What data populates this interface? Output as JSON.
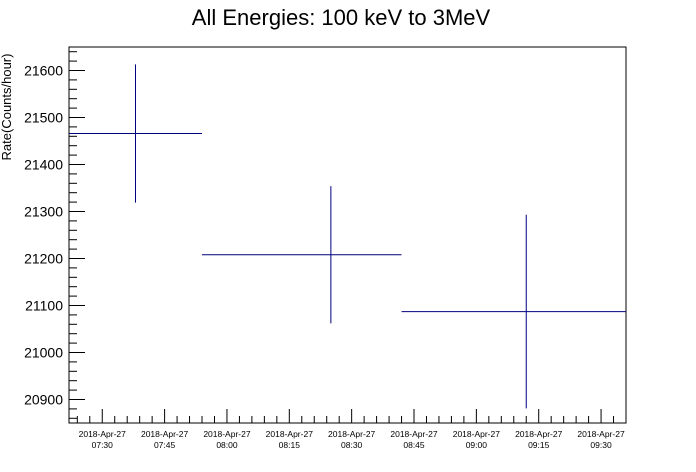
{
  "chart_data": {
    "type": "scatter",
    "title": "All Energies:  100 keV to 3MeV",
    "xlabel": "",
    "ylabel": "Rate(Counts/hour)",
    "x_tick_labels": [
      {
        "date": "2018-Apr-27",
        "time": "07:30"
      },
      {
        "date": "2018-Apr-27",
        "time": "07:45"
      },
      {
        "date": "2018-Apr-27",
        "time": "08:00"
      },
      {
        "date": "2018-Apr-27",
        "time": "08:15"
      },
      {
        "date": "2018-Apr-27",
        "time": "08:30"
      },
      {
        "date": "2018-Apr-27",
        "time": "08:45"
      },
      {
        "date": "2018-Apr-27",
        "time": "09:00"
      },
      {
        "date": "2018-Apr-27",
        "time": "09:15"
      },
      {
        "date": "2018-Apr-27",
        "time": "09:30"
      }
    ],
    "y_ticks": [
      20900,
      21000,
      21100,
      21200,
      21300,
      21400,
      21500,
      21600
    ],
    "xlim": [
      "2018-04-27 07:22",
      "2018-04-27 09:36"
    ],
    "ylim": [
      20850,
      21650
    ],
    "grid": false,
    "series": [
      {
        "color": "#00007f",
        "points": [
          {
            "x": "2018-04-27 07:38",
            "y": 21466,
            "x_start": "2018-04-27 07:22",
            "x_end": "2018-04-27 07:54",
            "y_err": 147
          },
          {
            "x": "2018-04-27 08:25",
            "y": 21208,
            "x_start": "2018-04-27 07:54",
            "x_end": "2018-04-27 08:42",
            "y_err": 146
          },
          {
            "x": "2018-04-27 09:12",
            "y": 21087,
            "x_start": "2018-04-27 08:42",
            "x_end": "2018-04-27 09:36",
            "y_err": 206
          }
        ]
      }
    ]
  }
}
